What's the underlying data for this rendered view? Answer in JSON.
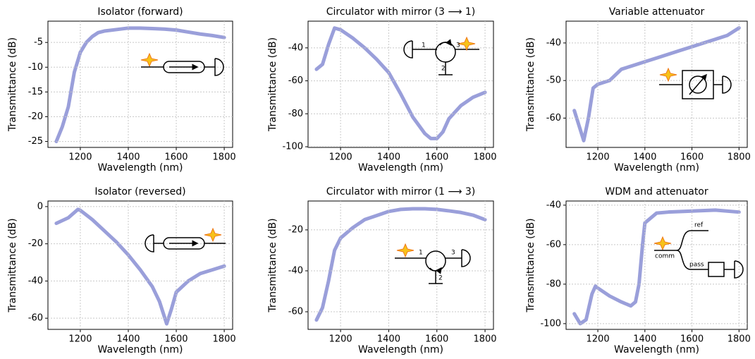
{
  "chart_data": [
    {
      "type": "line",
      "title": "Isolator (forward)",
      "x_label": "Wavelength (nm)",
      "y_label": "Transmittance (dB)",
      "color": "#8f95d6",
      "grid": true,
      "x": [
        1100,
        1125,
        1150,
        1175,
        1200,
        1225,
        1250,
        1275,
        1300,
        1350,
        1400,
        1450,
        1500,
        1550,
        1600,
        1650,
        1700,
        1750,
        1800
      ],
      "values": [
        -25,
        -22,
        -18,
        -11,
        -7,
        -5,
        -3.8,
        -3,
        -2.7,
        -2.4,
        -2.1,
        -2.1,
        -2.2,
        -2.3,
        -2.5,
        -2.9,
        -3.3,
        -3.6,
        -4
      ],
      "xlim": [
        1065,
        1835
      ],
      "ylim": [
        -26.2,
        -0.7
      ],
      "xticks": [
        1200,
        1400,
        1600,
        1800
      ],
      "yticks": [
        -25,
        -20,
        -15,
        -10,
        -5
      ]
    },
    {
      "type": "line",
      "title": "Circulator with mirror (3 ⟶ 1)",
      "x_label": "Wavelength (nm)",
      "y_label": "Transmittance (dB)",
      "color": "#8f95d6",
      "grid": true,
      "x": [
        1100,
        1125,
        1150,
        1175,
        1200,
        1250,
        1300,
        1350,
        1400,
        1450,
        1500,
        1550,
        1575,
        1600,
        1625,
        1650,
        1700,
        1750,
        1800
      ],
      "values": [
        -53,
        -50,
        -38,
        -28,
        -29,
        -34,
        -40,
        -47,
        -55,
        -68,
        -82,
        -92,
        -95,
        -95,
        -91,
        -83,
        -75,
        -70,
        -67
      ],
      "xlim": [
        1065,
        1835
      ],
      "ylim": [
        -100.4,
        -23.8
      ],
      "xticks": [
        1200,
        1400,
        1600,
        1800
      ],
      "yticks": [
        -100,
        -80,
        -60,
        -40
      ],
      "annotations": [
        "1",
        "2",
        "3"
      ]
    },
    {
      "type": "line",
      "title": "Variable attenuator",
      "x_label": "Wavelength (nm)",
      "y_label": "Transmittance (dB)",
      "color": "#8f95d6",
      "grid": true,
      "x": [
        1100,
        1125,
        1140,
        1160,
        1180,
        1200,
        1250,
        1300,
        1350,
        1400,
        1450,
        1500,
        1550,
        1600,
        1650,
        1700,
        1750,
        1800
      ],
      "values": [
        -58,
        -63,
        -66,
        -60,
        -52,
        -51,
        -50,
        -47,
        -46,
        -45,
        -44,
        -43,
        -42,
        -41,
        -40,
        -39,
        -38,
        -36
      ],
      "xlim": [
        1065,
        1835
      ],
      "ylim": [
        -67.8,
        -34.2
      ],
      "xticks": [
        1200,
        1400,
        1600,
        1800
      ],
      "yticks": [
        -60,
        -50,
        -40
      ]
    },
    {
      "type": "line",
      "title": "Isolator (reversed)",
      "x_label": "Wavelength (nm)",
      "y_label": "Transmittance (dB)",
      "color": "#8f95d6",
      "grid": true,
      "x": [
        1100,
        1150,
        1190,
        1200,
        1250,
        1300,
        1350,
        1400,
        1450,
        1500,
        1530,
        1560,
        1580,
        1600,
        1650,
        1700,
        1750,
        1800
      ],
      "values": [
        -9,
        -6,
        -1.5,
        -2,
        -7,
        -13,
        -19,
        -26,
        -34,
        -43,
        -51,
        -63,
        -55,
        -46,
        -40,
        -36,
        -34,
        -32
      ],
      "xlim": [
        1065,
        1835
      ],
      "ylim": [
        -66,
        3
      ],
      "xticks": [
        1200,
        1400,
        1600,
        1800
      ],
      "yticks": [
        -60,
        -40,
        -20,
        0
      ]
    },
    {
      "type": "line",
      "title": "Circulator with mirror (1 ⟶ 3)",
      "x_label": "Wavelength (nm)",
      "y_label": "Transmittance (dB)",
      "color": "#8f95d6",
      "grid": true,
      "x": [
        1100,
        1125,
        1150,
        1175,
        1200,
        1250,
        1300,
        1350,
        1400,
        1450,
        1500,
        1550,
        1600,
        1650,
        1700,
        1750,
        1800
      ],
      "values": [
        -64,
        -58,
        -45,
        -30,
        -24,
        -19,
        -15,
        -13,
        -11,
        -10,
        -9.7,
        -9.7,
        -10,
        -10.7,
        -11.5,
        -12.8,
        -15
      ],
      "xlim": [
        1065,
        1835
      ],
      "ylim": [
        -68.6,
        -5.9
      ],
      "xticks": [
        1200,
        1400,
        1600,
        1800
      ],
      "yticks": [
        -60,
        -40,
        -20
      ],
      "annotations": [
        "1",
        "2",
        "3"
      ]
    },
    {
      "type": "line",
      "title": "WDM and attenuator",
      "x_label": "Wavelength (nm)",
      "y_label": "Transmittance (dB)",
      "color": "#8f95d6",
      "grid": true,
      "x": [
        1100,
        1125,
        1150,
        1175,
        1190,
        1200,
        1250,
        1300,
        1340,
        1360,
        1375,
        1390,
        1400,
        1450,
        1500,
        1600,
        1700,
        1800
      ],
      "values": [
        -95,
        -100,
        -98,
        -85,
        -81,
        -82,
        -86,
        -89,
        -91,
        -89,
        -80,
        -60,
        -49,
        -44,
        -43.5,
        -43,
        -42.5,
        -43.5
      ],
      "xlim": [
        1065,
        1835
      ],
      "ylim": [
        -102.9,
        -37.9
      ],
      "xticks": [
        1200,
        1400,
        1600,
        1800
      ],
      "yticks": [
        -100,
        -80,
        -60,
        -40
      ],
      "annotations": [
        "ref",
        "comm",
        "pass"
      ]
    }
  ]
}
